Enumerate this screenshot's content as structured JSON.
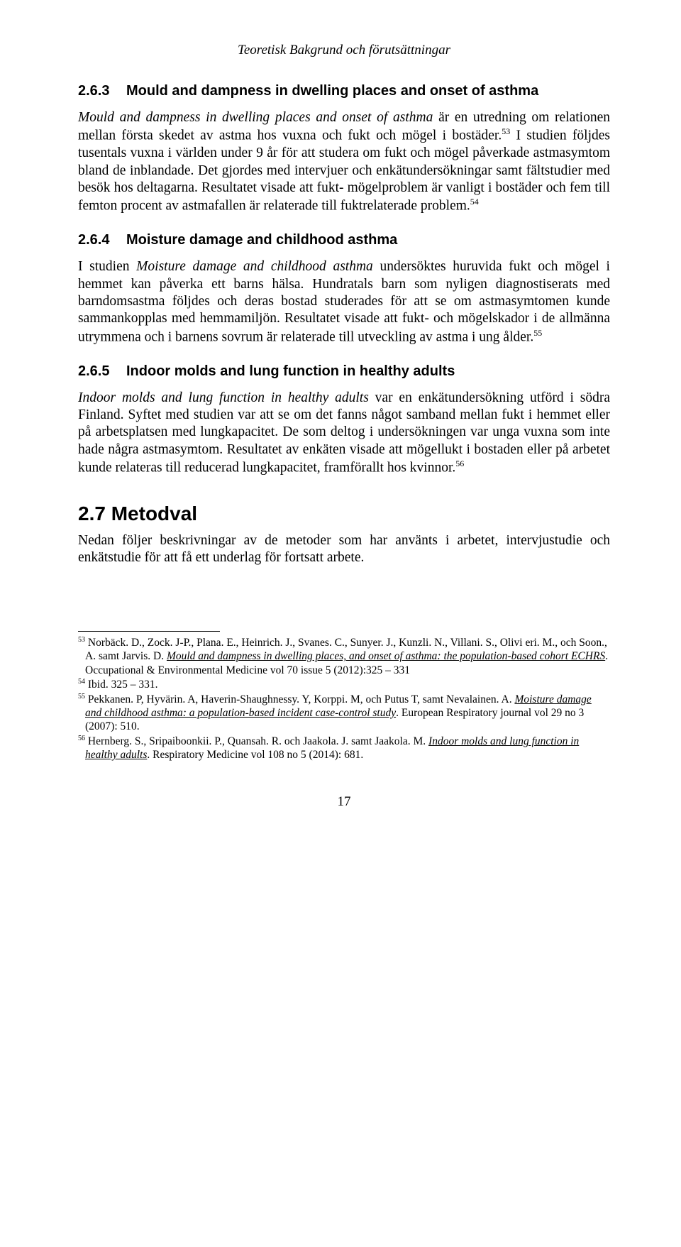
{
  "runningHeader": "Teoretisk Bakgrund och förutsättningar",
  "sections": {
    "s263": {
      "number": "2.6.3",
      "title": "Mould and dampness in dwelling places and onset of asthma"
    },
    "s264": {
      "number": "2.6.4",
      "title": "Moisture damage and childhood asthma"
    },
    "s265": {
      "number": "2.6.5",
      "title": "Indoor molds and lung function in healthy adults"
    },
    "s27": {
      "number": "2.7",
      "title": "Metodval"
    }
  },
  "paragraphs": {
    "p263_1a": "Mould and dampness in dwelling places and onset of asthma ",
    "p263_1b": "är en utredning om relationen mellan första skedet av astma hos vuxna och fukt och mögel i bostäder.",
    "p263_1c": " I studien följdes tusentals vuxna i världen under 9 år för att studera om fukt och mögel påverkade astmasymtom bland de inblandade. Det gjordes med intervjuer och enkätundersökningar samt fältstudier med besök hos deltagarna. Resultatet visade att fukt- mögelproblem är vanligt i bostäder och fem till femton procent av astmafallen är relaterade till fuktrelaterade problem.",
    "p264_1a": "I studien ",
    "p264_1b": "Moisture damage and childhood asthma",
    "p264_1c": " undersöktes huruvida fukt och mögel i hemmet kan påverka ett barns hälsa. Hundratals barn som nyligen diagnostiserats med barndomsastma följdes och deras bostad studerades för att se om astmasymtomen kunde sammankopplas med hemmamiljön. Resultatet visade att fukt- och mögelskador i de allmänna utrymmena och i barnens sovrum är relaterade till utveckling av astma i ung ålder.",
    "p265_1a": "Indoor molds and lung function in healthy adults ",
    "p265_1b": "var en enkätundersökning utförd i södra Finland. Syftet med studien var att se om det fanns något samband mellan fukt i hemmet eller på arbetsplatsen med lungkapacitet. De som deltog i undersökningen var unga vuxna som inte hade några astmasymtom. Resultatet av enkäten visade att mögellukt i bostaden eller på arbetet kunde relateras till reducerad lungkapacitet, framförallt hos kvinnor.",
    "p27_1": "Nedan följer beskrivningar av de metoder som har använts i arbetet, intervjustudie och enkätstudie för att få ett underlag för fortsatt arbete."
  },
  "superscripts": {
    "s53": "53",
    "s54": "54",
    "s55": "55",
    "s56": "56"
  },
  "footnotes": {
    "fn53_num": "53",
    "fn53_a": " Norbäck. D., Zock. J-P., Plana. E., Heinrich. J., Svanes. C., Sunyer. J., Kunzli. N., Villani. S., Olivi eri. M., och Soon., A. samt Jarvis. D. ",
    "fn53_b": "Mould and dampness in dwelling places, and onset of asthma: the population-based cohort ECHRS",
    "fn53_c": ". Occupational & Environmental Medicine vol 70 issue 5 (2012):325 – 331",
    "fn54_num": "54",
    "fn54_a": " Ibid. 325 – 331.",
    "fn55_num": "55",
    "fn55_a": " Pekkanen. P, Hyvärin. A, Haverin-Shaughnessy. Y, Korppi. M, och Putus T, samt Nevalainen. A. ",
    "fn55_b": "Moisture damage and childhood asthma: a population-based incident case-control study",
    "fn55_c": ". European Respiratory journal vol 29 no 3 (2007): 510.",
    "fn56_num": "56",
    "fn56_a": " Hernberg. S., Sripaiboonkii. P., Quansah. R. och Jaakola. J. samt Jaakola. M. ",
    "fn56_b": "Indoor molds and lung function  in healthy adults",
    "fn56_c": ". Respiratory Medicine vol 108 no 5 (2014): 681."
  },
  "pageNumber": "17"
}
